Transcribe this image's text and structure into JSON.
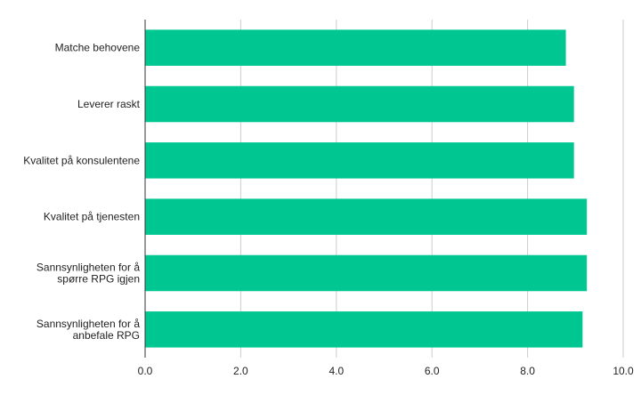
{
  "chart_data": {
    "type": "bar",
    "orientation": "horizontal",
    "categories": [
      [
        "Matche behovene"
      ],
      [
        "Leverer raskt"
      ],
      [
        "Kvalitet på konsulentene"
      ],
      [
        "Kvalitet på tjenesten"
      ],
      [
        "Sannsynligheten for å",
        "spørre RPG igjen"
      ],
      [
        "Sannsynligheten for å",
        "anbefale RPG"
      ]
    ],
    "values": [
      8.8,
      8.97,
      8.97,
      9.24,
      9.24,
      9.15
    ],
    "xlim": [
      0,
      10
    ],
    "xticks": [
      "0.0",
      "2.0",
      "4.0",
      "6.0",
      "8.0",
      "10.0"
    ],
    "title": "",
    "xlabel": "",
    "ylabel": "",
    "grid": "vertical",
    "legend": "none",
    "colors": {
      "bar": "#00c792",
      "grid": "#cccccc",
      "axis": "#333333"
    }
  }
}
